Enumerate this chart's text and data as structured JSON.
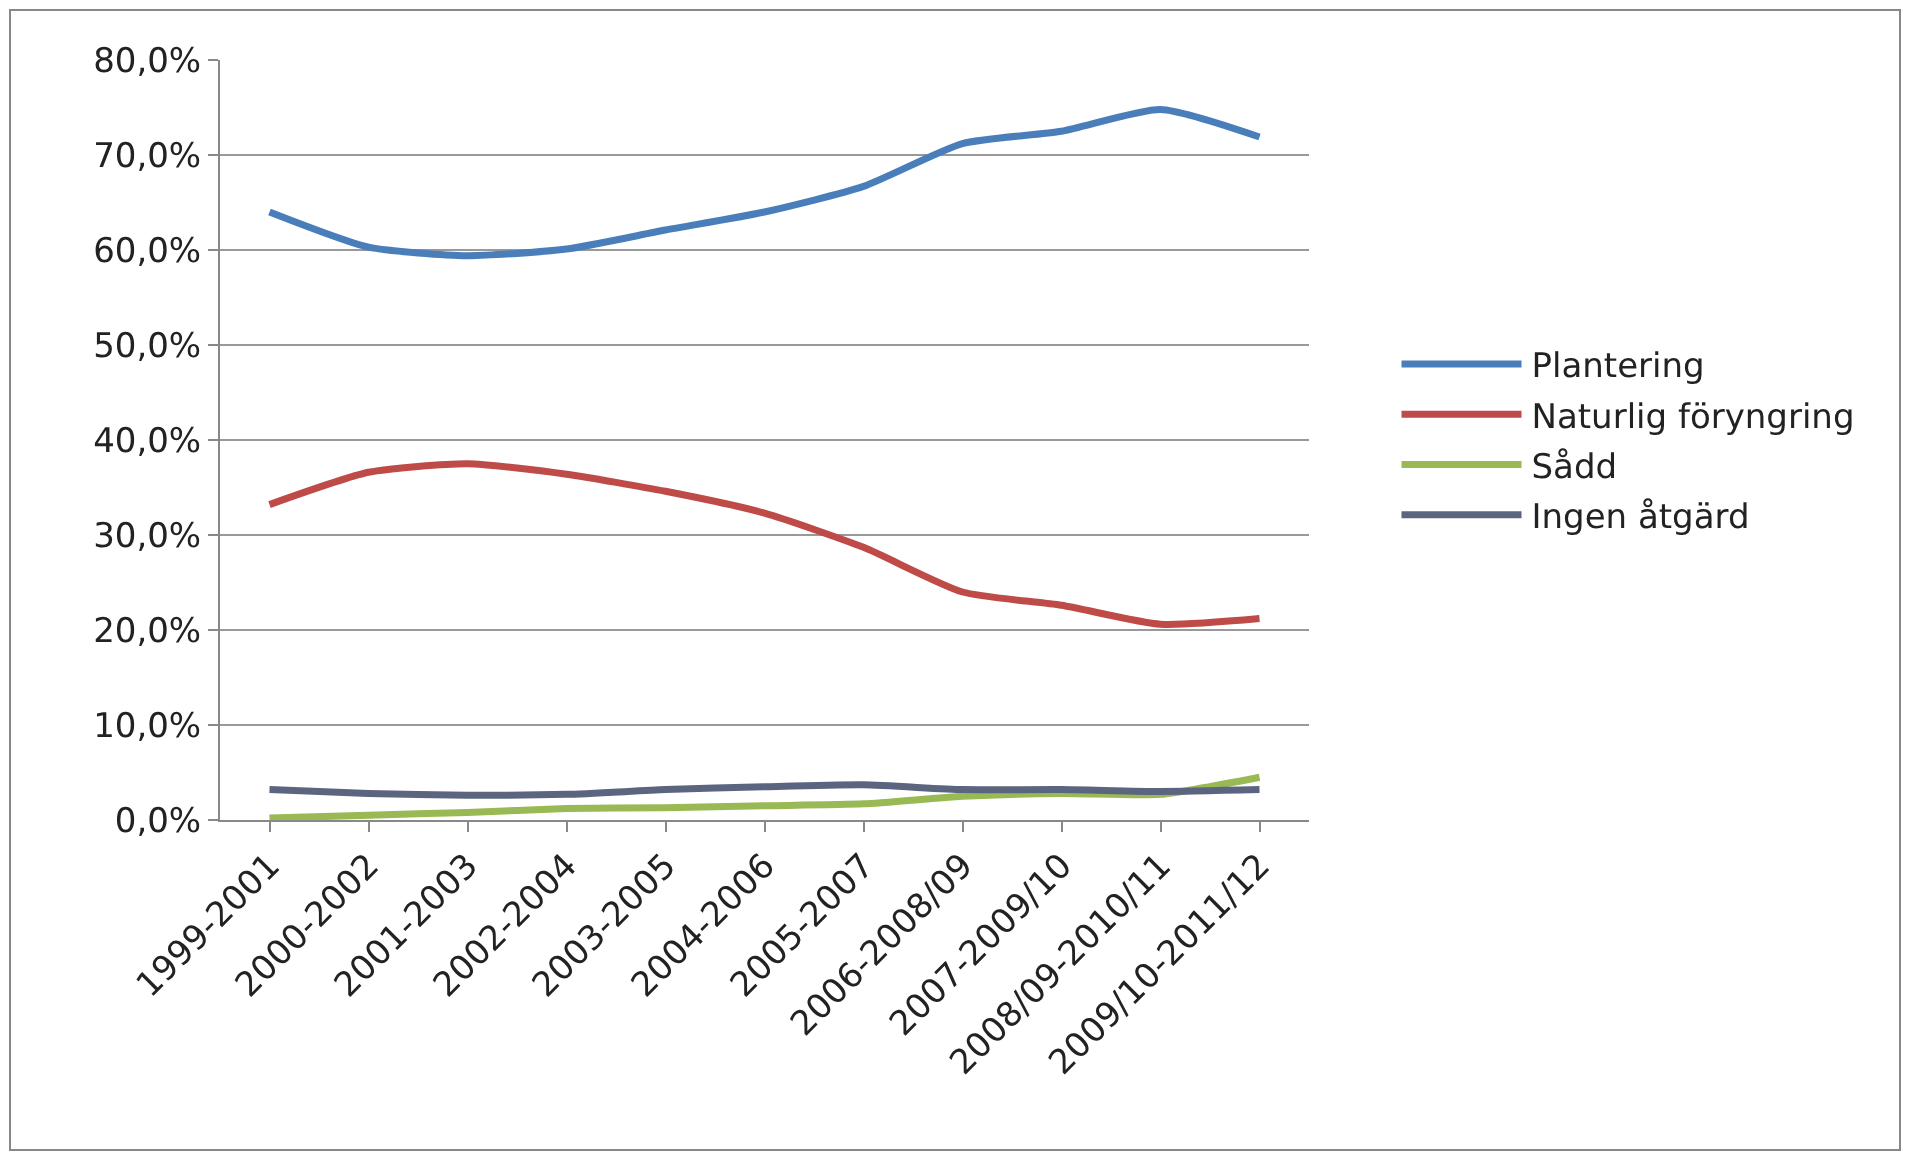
{
  "chart_data": {
    "type": "line",
    "categories": [
      "1999-2001",
      "2000-2002",
      "2001-2003",
      "2002-2004",
      "2003-2005",
      "2004-2006",
      "2005-2007",
      "2006-2008/09",
      "2007-2009/10",
      "2008/09-2010/11",
      "2009/10-2011/12"
    ],
    "series": [
      {
        "name": "Plantering",
        "color": "#4a7ebb",
        "values": [
          64.0,
          60.3,
          59.4,
          60.1,
          62.1,
          64.0,
          66.7,
          71.2,
          72.5,
          74.8,
          71.9
        ]
      },
      {
        "name": "Naturlig föryngring",
        "color": "#be4b48",
        "values": [
          33.2,
          36.6,
          37.5,
          36.4,
          34.6,
          32.3,
          28.7,
          24.0,
          22.6,
          20.6,
          21.2
        ]
      },
      {
        "name": "Sådd",
        "color": "#98b954",
        "values": [
          0.2,
          0.5,
          0.8,
          1.2,
          1.3,
          1.5,
          1.7,
          2.5,
          2.8,
          2.7,
          4.5
        ]
      },
      {
        "name": "Ingen åtgärd",
        "color": "#5c6580",
        "values": [
          3.2,
          2.8,
          2.6,
          2.7,
          3.2,
          3.5,
          3.7,
          3.2,
          3.2,
          3.0,
          3.2
        ]
      }
    ],
    "ylim": [
      0,
      80
    ],
    "yticks": [
      {
        "value": 0,
        "label": "0,0%"
      },
      {
        "value": 10,
        "label": "10,0%"
      },
      {
        "value": 20,
        "label": "20,0%"
      },
      {
        "value": 30,
        "label": "30,0%"
      },
      {
        "value": 40,
        "label": "40,0%"
      },
      {
        "value": 50,
        "label": "50,0%"
      },
      {
        "value": 60,
        "label": "60,0%"
      },
      {
        "value": 70,
        "label": "70,0%"
      },
      {
        "value": 80,
        "label": "80,0%"
      }
    ],
    "grid": "y",
    "legend": "right",
    "marker": "none",
    "line_style": "solid"
  }
}
